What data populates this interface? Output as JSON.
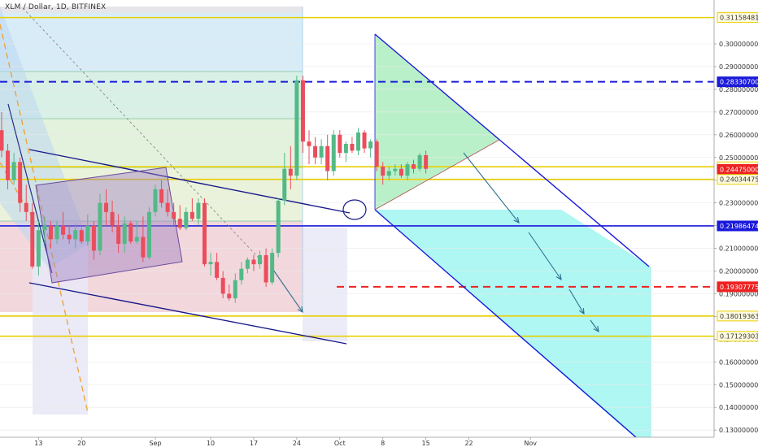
{
  "header": {
    "title": "XLM / Dollar, 1D, BITFINEX"
  },
  "chart_data": {
    "type": "candlestick",
    "symbol": "XLM / Dollar",
    "interval": "1D",
    "exchange": "BITFINEX",
    "ylim": [
      0.125,
      0.3175
    ],
    "x_range": [
      "Aug 7",
      "Nov 1"
    ],
    "x_ticks": [
      "13",
      "20",
      "Sep",
      "10",
      "17",
      "24",
      "Oct",
      "8",
      "15",
      "22",
      "Nov"
    ],
    "y_ticks": [
      "0.13000000",
      "0.14000000",
      "0.15000000",
      "0.16000000",
      "0.17000000",
      "0.18000000",
      "0.19000000",
      "0.20000000",
      "0.21000000",
      "0.22000000",
      "0.23000000",
      "0.24000000",
      "0.25000000",
      "0.26000000",
      "0.27000000",
      "0.28000000",
      "0.29000000",
      "0.30000000"
    ],
    "price_levels": [
      {
        "label": "0.31158481",
        "value": 0.31158481,
        "color": "#e8d000",
        "style": "solid"
      },
      {
        "label": "0.28330700",
        "value": 0.283307,
        "color": "#1a1adb",
        "style": "dashed"
      },
      {
        "label": "0.24590889",
        "value": 0.24590889,
        "color": "#e8d000",
        "style": "solid"
      },
      {
        "label": "0.24475000",
        "value": 0.24475,
        "color": "#ee2222",
        "style": "marker"
      },
      {
        "label": "0.24034475",
        "value": 0.24034475,
        "color": "#e8d000",
        "style": "solid"
      },
      {
        "label": "0.21986474",
        "value": 0.21986474,
        "color": "#1a1adb",
        "style": "solid"
      },
      {
        "label": "0.19307775",
        "value": 0.19307775,
        "color": "#ee2222",
        "style": "dashed"
      },
      {
        "label": "0.18019363",
        "value": 0.18019363,
        "color": "#e8d000",
        "style": "solid"
      },
      {
        "label": "0.17129303",
        "value": 0.17129303,
        "color": "#e8d000",
        "style": "solid"
      }
    ],
    "candles": [
      {
        "date": "2018-08-07",
        "o": 0.262,
        "h": 0.27,
        "l": 0.25,
        "c": 0.253
      },
      {
        "date": "2018-08-08",
        "o": 0.253,
        "h": 0.256,
        "l": 0.236,
        "c": 0.24
      },
      {
        "date": "2018-08-09",
        "o": 0.24,
        "h": 0.252,
        "l": 0.238,
        "c": 0.248
      },
      {
        "date": "2018-08-10",
        "o": 0.248,
        "h": 0.25,
        "l": 0.226,
        "c": 0.23
      },
      {
        "date": "2018-08-11",
        "o": 0.23,
        "h": 0.238,
        "l": 0.222,
        "c": 0.226
      },
      {
        "date": "2018-08-12",
        "o": 0.226,
        "h": 0.23,
        "l": 0.201,
        "c": 0.202
      },
      {
        "date": "2018-08-13",
        "o": 0.202,
        "h": 0.222,
        "l": 0.198,
        "c": 0.218
      },
      {
        "date": "2018-08-14",
        "o": 0.218,
        "h": 0.224,
        "l": 0.212,
        "c": 0.22
      },
      {
        "date": "2018-08-15",
        "o": 0.22,
        "h": 0.222,
        "l": 0.21,
        "c": 0.214
      },
      {
        "date": "2018-08-16",
        "o": 0.214,
        "h": 0.222,
        "l": 0.212,
        "c": 0.22
      },
      {
        "date": "2018-08-17",
        "o": 0.22,
        "h": 0.226,
        "l": 0.214,
        "c": 0.216
      },
      {
        "date": "2018-08-18",
        "o": 0.216,
        "h": 0.22,
        "l": 0.212,
        "c": 0.214
      },
      {
        "date": "2018-08-19",
        "o": 0.214,
        "h": 0.221,
        "l": 0.21,
        "c": 0.218
      },
      {
        "date": "2018-08-20",
        "o": 0.218,
        "h": 0.219,
        "l": 0.212,
        "c": 0.213
      },
      {
        "date": "2018-08-21",
        "o": 0.213,
        "h": 0.225,
        "l": 0.211,
        "c": 0.22
      },
      {
        "date": "2018-08-22",
        "o": 0.22,
        "h": 0.222,
        "l": 0.205,
        "c": 0.209
      },
      {
        "date": "2018-08-23",
        "o": 0.209,
        "h": 0.234,
        "l": 0.207,
        "c": 0.23
      },
      {
        "date": "2018-08-24",
        "o": 0.23,
        "h": 0.236,
        "l": 0.22,
        "c": 0.226
      },
      {
        "date": "2018-08-25",
        "o": 0.226,
        "h": 0.231,
        "l": 0.217,
        "c": 0.22
      },
      {
        "date": "2018-08-26",
        "o": 0.22,
        "h": 0.225,
        "l": 0.208,
        "c": 0.212
      },
      {
        "date": "2018-08-27",
        "o": 0.212,
        "h": 0.224,
        "l": 0.208,
        "c": 0.221
      },
      {
        "date": "2018-08-28",
        "o": 0.221,
        "h": 0.222,
        "l": 0.212,
        "c": 0.213
      },
      {
        "date": "2018-08-29",
        "o": 0.213,
        "h": 0.222,
        "l": 0.212,
        "c": 0.215
      },
      {
        "date": "2018-08-30",
        "o": 0.215,
        "h": 0.224,
        "l": 0.204,
        "c": 0.206
      },
      {
        "date": "2018-08-31",
        "o": 0.206,
        "h": 0.228,
        "l": 0.205,
        "c": 0.226
      },
      {
        "date": "2018-09-01",
        "o": 0.226,
        "h": 0.238,
        "l": 0.224,
        "c": 0.236
      },
      {
        "date": "2018-09-02",
        "o": 0.236,
        "h": 0.24,
        "l": 0.228,
        "c": 0.23
      },
      {
        "date": "2018-09-03",
        "o": 0.23,
        "h": 0.236,
        "l": 0.224,
        "c": 0.226
      },
      {
        "date": "2018-09-04",
        "o": 0.226,
        "h": 0.23,
        "l": 0.22,
        "c": 0.223
      },
      {
        "date": "2018-09-05",
        "o": 0.223,
        "h": 0.229,
        "l": 0.218,
        "c": 0.219
      },
      {
        "date": "2018-09-06",
        "o": 0.219,
        "h": 0.228,
        "l": 0.218,
        "c": 0.226
      },
      {
        "date": "2018-09-07",
        "o": 0.226,
        "h": 0.232,
        "l": 0.222,
        "c": 0.223
      },
      {
        "date": "2018-09-08",
        "o": 0.223,
        "h": 0.232,
        "l": 0.22,
        "c": 0.23
      },
      {
        "date": "2018-09-09",
        "o": 0.23,
        "h": 0.232,
        "l": 0.202,
        "c": 0.203
      },
      {
        "date": "2018-09-10",
        "o": 0.203,
        "h": 0.208,
        "l": 0.198,
        "c": 0.204
      },
      {
        "date": "2018-09-11",
        "o": 0.204,
        "h": 0.208,
        "l": 0.196,
        "c": 0.197
      },
      {
        "date": "2018-09-12",
        "o": 0.197,
        "h": 0.2,
        "l": 0.188,
        "c": 0.19
      },
      {
        "date": "2018-09-13",
        "o": 0.19,
        "h": 0.194,
        "l": 0.187,
        "c": 0.188
      },
      {
        "date": "2018-09-14",
        "o": 0.188,
        "h": 0.199,
        "l": 0.186,
        "c": 0.196
      },
      {
        "date": "2018-09-15",
        "o": 0.196,
        "h": 0.204,
        "l": 0.194,
        "c": 0.201
      },
      {
        "date": "2018-09-16",
        "o": 0.201,
        "h": 0.206,
        "l": 0.199,
        "c": 0.205
      },
      {
        "date": "2018-09-17",
        "o": 0.205,
        "h": 0.207,
        "l": 0.2,
        "c": 0.203
      },
      {
        "date": "2018-09-18",
        "o": 0.203,
        "h": 0.209,
        "l": 0.201,
        "c": 0.207
      },
      {
        "date": "2018-09-19",
        "o": 0.207,
        "h": 0.21,
        "l": 0.193,
        "c": 0.195
      },
      {
        "date": "2018-09-20",
        "o": 0.195,
        "h": 0.21,
        "l": 0.194,
        "c": 0.208
      },
      {
        "date": "2018-09-21",
        "o": 0.208,
        "h": 0.232,
        "l": 0.206,
        "c": 0.231
      },
      {
        "date": "2018-09-22",
        "o": 0.231,
        "h": 0.252,
        "l": 0.229,
        "c": 0.245
      },
      {
        "date": "2018-09-23",
        "o": 0.245,
        "h": 0.255,
        "l": 0.236,
        "c": 0.242
      },
      {
        "date": "2018-09-24",
        "o": 0.242,
        "h": 0.286,
        "l": 0.24,
        "c": 0.284
      },
      {
        "date": "2018-09-25",
        "o": 0.284,
        "h": 0.286,
        "l": 0.252,
        "c": 0.257
      },
      {
        "date": "2018-09-26",
        "o": 0.257,
        "h": 0.262,
        "l": 0.247,
        "c": 0.255
      },
      {
        "date": "2018-09-27",
        "o": 0.255,
        "h": 0.259,
        "l": 0.247,
        "c": 0.25
      },
      {
        "date": "2018-09-28",
        "o": 0.25,
        "h": 0.258,
        "l": 0.247,
        "c": 0.255
      },
      {
        "date": "2018-09-29",
        "o": 0.255,
        "h": 0.26,
        "l": 0.24,
        "c": 0.244
      },
      {
        "date": "2018-09-30",
        "o": 0.244,
        "h": 0.262,
        "l": 0.242,
        "c": 0.26
      },
      {
        "date": "2018-10-01",
        "o": 0.26,
        "h": 0.262,
        "l": 0.25,
        "c": 0.252
      },
      {
        "date": "2018-10-02",
        "o": 0.252,
        "h": 0.257,
        "l": 0.248,
        "c": 0.256
      },
      {
        "date": "2018-10-03",
        "o": 0.256,
        "h": 0.259,
        "l": 0.252,
        "c": 0.253
      },
      {
        "date": "2018-10-04",
        "o": 0.253,
        "h": 0.263,
        "l": 0.251,
        "c": 0.261
      },
      {
        "date": "2018-10-05",
        "o": 0.261,
        "h": 0.262,
        "l": 0.252,
        "c": 0.254
      },
      {
        "date": "2018-10-06",
        "o": 0.254,
        "h": 0.258,
        "l": 0.25,
        "c": 0.257
      },
      {
        "date": "2018-10-07",
        "o": 0.257,
        "h": 0.258,
        "l": 0.244,
        "c": 0.246
      },
      {
        "date": "2018-10-08",
        "o": 0.246,
        "h": 0.248,
        "l": 0.238,
        "c": 0.242
      },
      {
        "date": "2018-10-09",
        "o": 0.242,
        "h": 0.246,
        "l": 0.24,
        "c": 0.244
      },
      {
        "date": "2018-10-10",
        "o": 0.244,
        "h": 0.247,
        "l": 0.242,
        "c": 0.245
      },
      {
        "date": "2018-10-11",
        "o": 0.245,
        "h": 0.247,
        "l": 0.241,
        "c": 0.242
      },
      {
        "date": "2018-10-12",
        "o": 0.242,
        "h": 0.248,
        "l": 0.24,
        "c": 0.247
      },
      {
        "date": "2018-10-13",
        "o": 0.247,
        "h": 0.249,
        "l": 0.243,
        "c": 0.245
      },
      {
        "date": "2018-10-14",
        "o": 0.245,
        "h": 0.252,
        "l": 0.244,
        "c": 0.251
      },
      {
        "date": "2018-10-15",
        "o": 0.251,
        "h": 0.253,
        "l": 0.243,
        "c": 0.245
      }
    ],
    "colors": {
      "up": "#53b987",
      "down": "#eb4d5c",
      "price_tag": "#ee2222"
    }
  }
}
